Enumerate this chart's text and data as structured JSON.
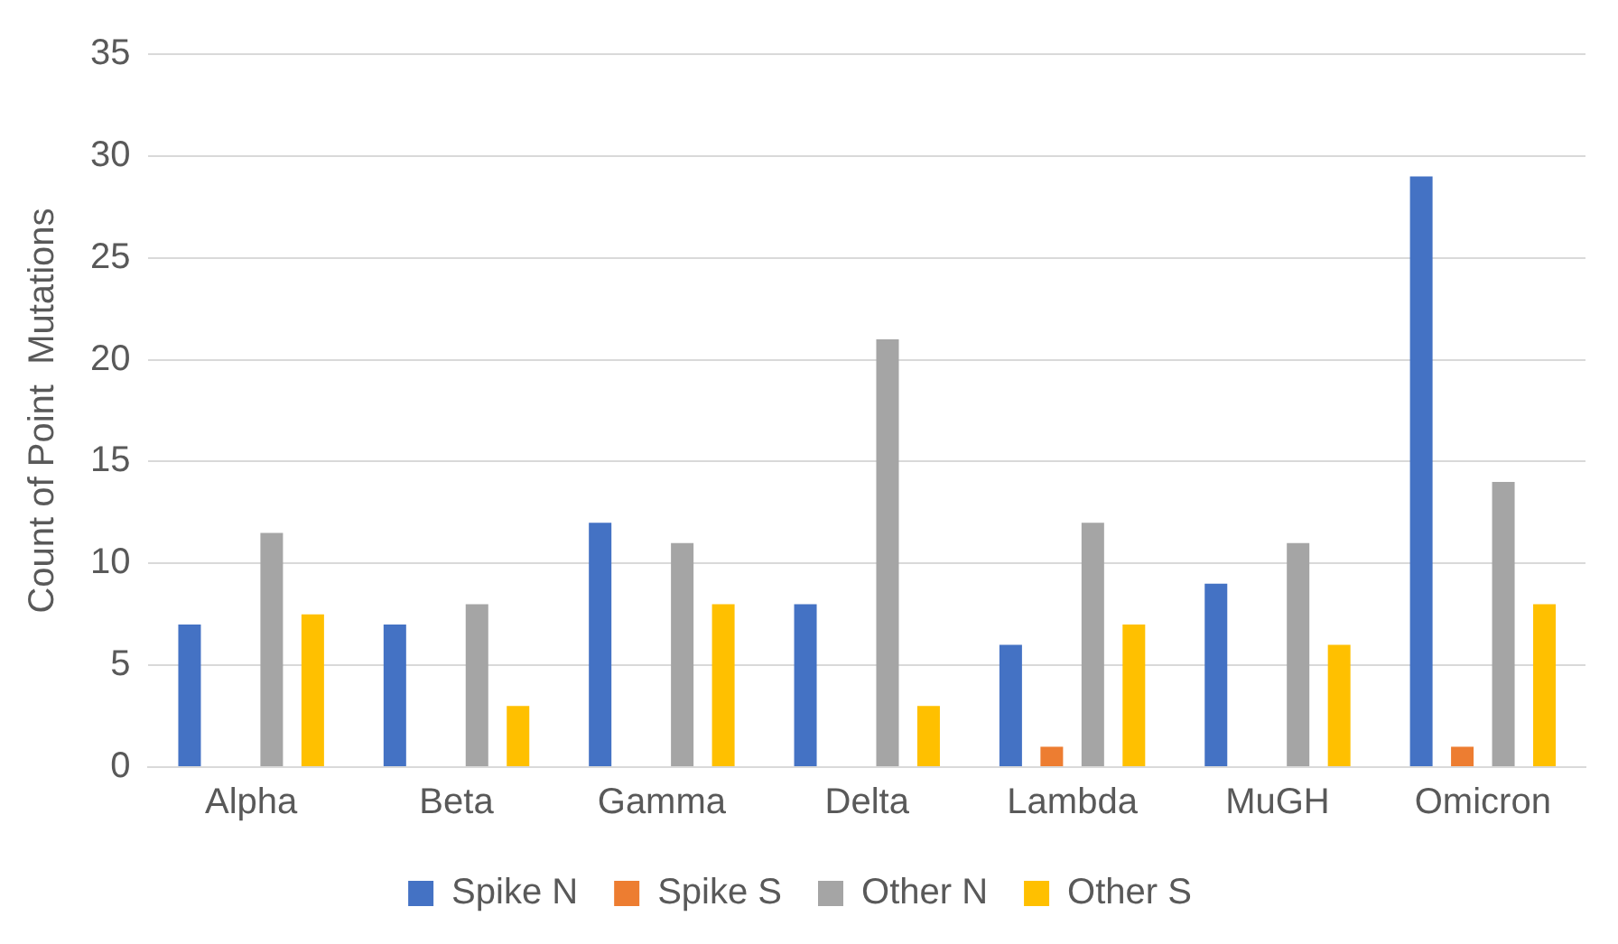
{
  "chart_data": {
    "type": "bar",
    "ylabel": "Count of Point  Mutations",
    "categories": [
      "Alpha",
      "Beta",
      "Gamma",
      "Delta",
      "Lambda",
      "MuGH",
      "Omicron"
    ],
    "series": [
      {
        "name": "Spike N",
        "color": "#4472c4",
        "values": [
          7,
          7,
          12,
          8,
          6,
          9,
          29
        ]
      },
      {
        "name": "Spike S",
        "color": "#ed7d31",
        "values": [
          0,
          0,
          0,
          0,
          1,
          0,
          1
        ]
      },
      {
        "name": "Other N",
        "color": "#a5a5a5",
        "values": [
          11.5,
          8,
          11,
          21,
          12,
          11,
          14
        ]
      },
      {
        "name": "Other S",
        "color": "#ffc000",
        "values": [
          7.5,
          3,
          8,
          3,
          7,
          6,
          8
        ]
      }
    ],
    "ylim": [
      0,
      35
    ],
    "yticks": [
      0,
      5,
      10,
      15,
      20,
      25,
      30,
      35
    ],
    "grid": "y",
    "legend": "bottom"
  }
}
